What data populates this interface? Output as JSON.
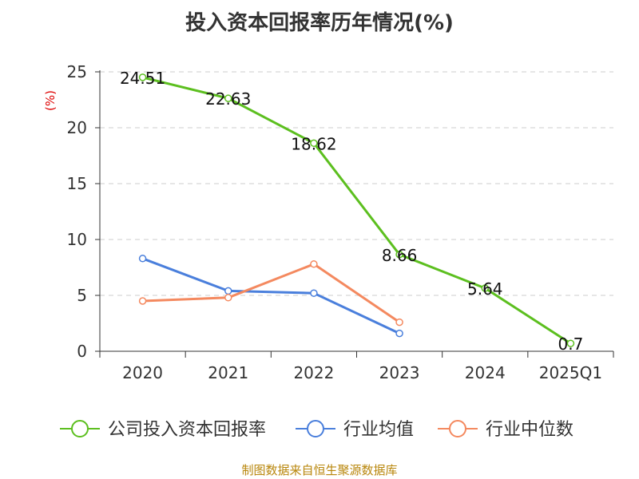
{
  "title": "投入资本回报率历年情况(%)",
  "source": "制图数据来自恒生聚源数据库",
  "colors": {
    "grid": "#cccccc",
    "axis": "#333333",
    "ylabel": "#dd0000"
  },
  "chart_data": {
    "type": "line",
    "title": "投入资本回报率历年情况(%)",
    "ylabel": "(%)",
    "xlabel": "",
    "categories": [
      "2020",
      "2021",
      "2022",
      "2023",
      "2024",
      "2025Q1"
    ],
    "ylim": [
      0,
      25
    ],
    "yticks": [
      0,
      5,
      10,
      15,
      20,
      25
    ],
    "grid": true,
    "legend_position": "bottom",
    "series": [
      {
        "name": "公司投入资本回报率",
        "color": "#5cbf1f",
        "values": [
          24.51,
          22.63,
          18.62,
          8.66,
          5.64,
          0.7
        ],
        "labels": [
          "24.51",
          "22.63",
          "18.62",
          "8.66",
          "5.64",
          "0.7"
        ],
        "show_labels": true
      },
      {
        "name": "行业均值",
        "color": "#4a7fdc",
        "values": [
          8.3,
          5.4,
          5.2,
          1.6,
          null,
          null
        ],
        "show_labels": false
      },
      {
        "name": "行业中位数",
        "color": "#f4895f",
        "values": [
          4.5,
          4.8,
          7.8,
          2.6,
          null,
          null
        ],
        "show_labels": false
      }
    ]
  }
}
